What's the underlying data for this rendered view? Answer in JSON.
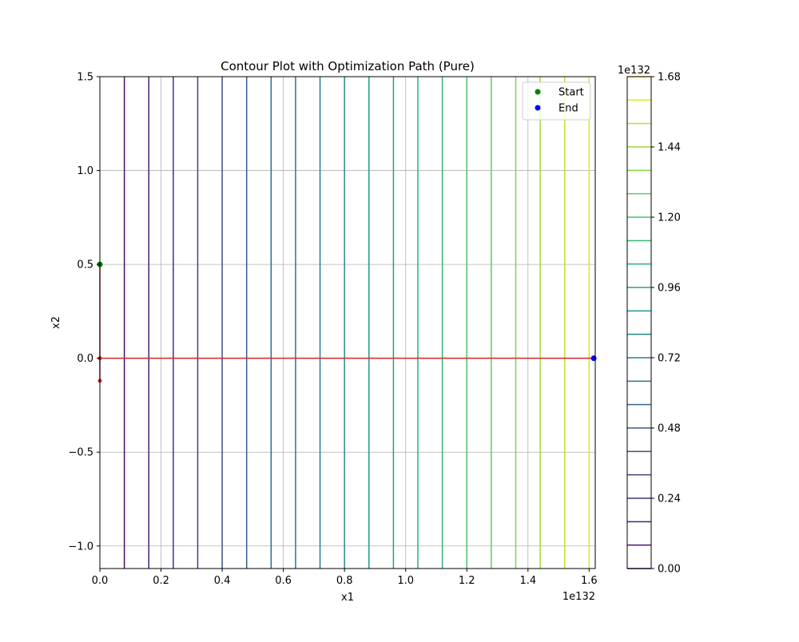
{
  "chart_data": {
    "type": "contour",
    "title": "Contour Plot with Optimization Path (Pure)",
    "xlabel": "x1",
    "ylabel": "x2",
    "x_scale_label": "1e132",
    "colorbar_scale_label": "1e132",
    "xlim": [
      0.0,
      1.62
    ],
    "ylim": [
      -1.12,
      1.5
    ],
    "x_ticks": [
      0.0,
      0.2,
      0.4,
      0.6,
      0.8,
      1.0,
      1.2,
      1.4,
      1.6
    ],
    "x_tick_labels": [
      "0.0",
      "0.2",
      "0.4",
      "0.6",
      "0.8",
      "1.0",
      "1.2",
      "1.4",
      "1.6"
    ],
    "y_ticks": [
      -1.0,
      -0.5,
      0.0,
      0.5,
      1.0,
      1.5
    ],
    "y_tick_labels": [
      "−1.0",
      "−0.5",
      "0.0",
      "0.5",
      "1.0",
      "1.5"
    ],
    "grid": true,
    "contour_levels": [
      0.0,
      0.08,
      0.16,
      0.24,
      0.32,
      0.4,
      0.48,
      0.56,
      0.64,
      0.72,
      0.8,
      0.88,
      0.96,
      1.04,
      1.12,
      1.2,
      1.28,
      1.36,
      1.44,
      1.52,
      1.6,
      1.68
    ],
    "colorbar": {
      "range": [
        0.0,
        1.68
      ],
      "ticks": [
        0.0,
        0.24,
        0.48,
        0.72,
        0.96,
        1.2,
        1.44,
        1.68
      ],
      "tick_labels": [
        "0.00",
        "0.24",
        "0.48",
        "0.72",
        "0.96",
        "1.20",
        "1.44",
        "1.68"
      ]
    },
    "optimization_path": {
      "color": "#d62728",
      "points": [
        [
          0.0,
          0.5
        ],
        [
          0.0,
          0.0
        ],
        [
          0.0,
          -0.12
        ],
        [
          0.0,
          0.0
        ],
        [
          1.615,
          0.0
        ]
      ]
    },
    "markers": [
      {
        "name": "Start",
        "x": 0.0,
        "y": 0.5,
        "color": "#008000"
      },
      {
        "name": "End",
        "x": 1.615,
        "y": 0.0,
        "color": "#0000ff"
      }
    ],
    "legend": {
      "placement": "top-right",
      "entries": [
        {
          "label": "Start",
          "color": "#008000"
        },
        {
          "label": "End",
          "color": "#0000ff"
        }
      ]
    },
    "colormap": "viridis"
  }
}
